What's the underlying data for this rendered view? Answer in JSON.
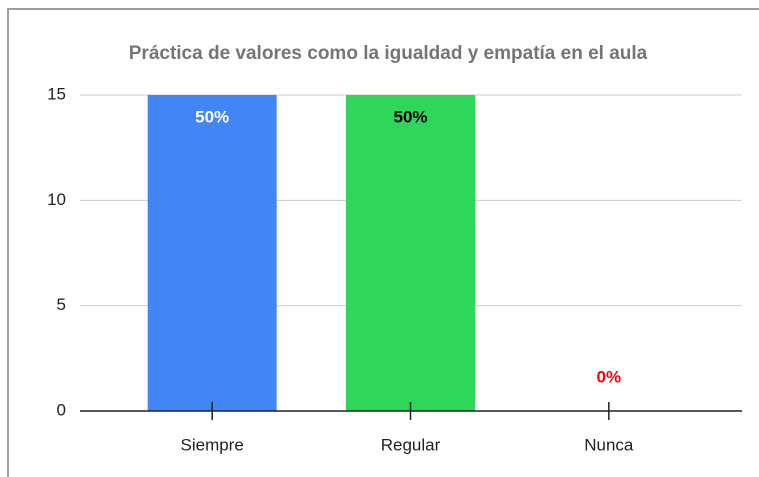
{
  "chart_data": {
    "type": "bar",
    "title": "Práctica de valores como la igualdad y empatía en el aula",
    "categories": [
      "Siempre",
      "Regular",
      "Nunca"
    ],
    "values": [
      15,
      15,
      0
    ],
    "percent_labels": [
      "50%",
      "50%",
      "0%"
    ],
    "colors": [
      "#4285f4",
      "#2ed65a",
      "#4285f4"
    ],
    "label_colors": [
      "#ffffff",
      "#000000",
      "#ff0000"
    ],
    "ylim": [
      0,
      15
    ],
    "yticks": [
      0,
      5,
      10,
      15
    ],
    "grid": true
  }
}
